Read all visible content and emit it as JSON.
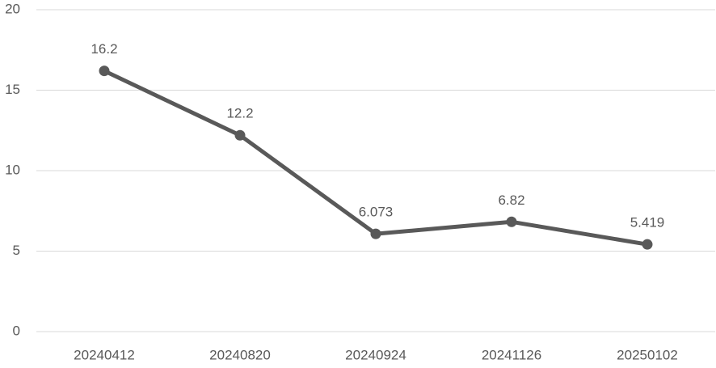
{
  "chart_data": {
    "type": "line",
    "categories": [
      "20240412",
      "20240820",
      "20240924",
      "20241126",
      "20250102"
    ],
    "values": [
      16.2,
      12.2,
      6.073,
      6.82,
      5.419
    ],
    "color": "#595959",
    "ylim": [
      0,
      20
    ],
    "yticks": [
      0,
      5,
      10,
      15,
      20
    ],
    "grid": true
  }
}
